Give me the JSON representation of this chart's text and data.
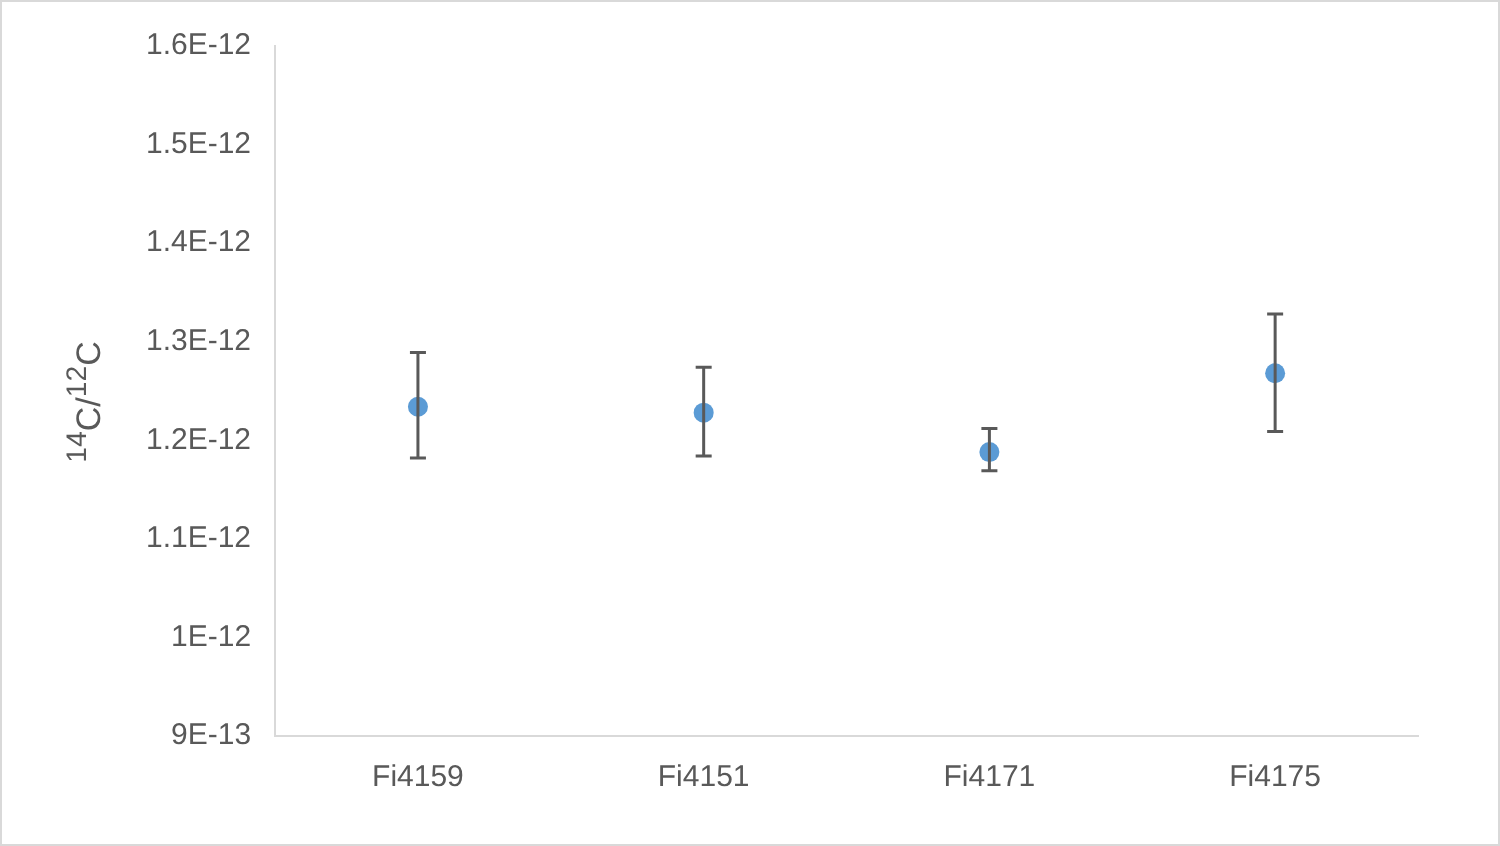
{
  "chart_data": {
    "type": "scatter",
    "ylabel": "$^{14}$C/$^{12}$C",
    "categories": [
      "Fi4159",
      "Fi4151",
      "Fi4171",
      "Fi4175"
    ],
    "values": [
      1.234e-12,
      1.228e-12,
      1.188e-12,
      1.268e-12
    ],
    "errors": [
      [
        1.182e-12,
        1.289e-12
      ],
      [
        1.184e-12,
        1.274e-12
      ],
      [
        1.169e-12,
        1.212e-12
      ],
      [
        1.209e-12,
        1.328e-12
      ]
    ],
    "color": "#5b9bd5",
    "marker": "circle",
    "grid": false,
    "legend": false,
    "ylim": [
      9e-13,
      1.6e-12
    ],
    "yticks": [
      {
        "value": 9e-13,
        "label": "9E-13"
      },
      {
        "value": 1e-12,
        "label": "1E-12"
      },
      {
        "value": 1.1e-12,
        "label": "1.1E-12"
      },
      {
        "value": 1.2e-12,
        "label": "1.2E-12"
      },
      {
        "value": 1.3e-12,
        "label": "1.3E-12"
      },
      {
        "value": 1.4e-12,
        "label": "1.4E-12"
      },
      {
        "value": 1.5e-12,
        "label": "1.5E-12"
      },
      {
        "value": 1.6e-12,
        "label": "1.6E-12"
      }
    ]
  }
}
